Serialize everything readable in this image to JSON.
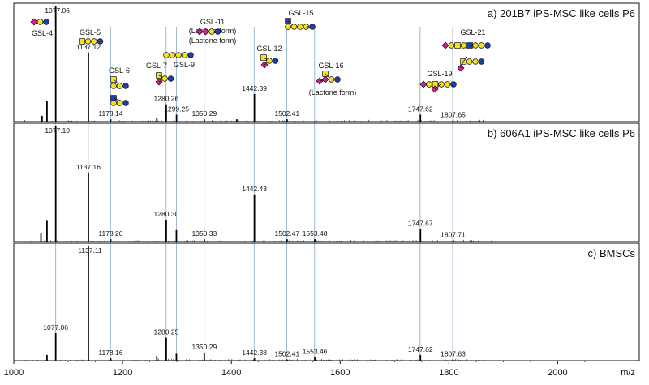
{
  "chart_data": {
    "type": "line",
    "title": "",
    "xlabel": "m/z",
    "ylabel": "",
    "xlim": [
      1000,
      2150
    ],
    "x_ticks": [
      1000,
      1200,
      1400,
      1600,
      1800,
      2000
    ],
    "grid": false,
    "panels": [
      {
        "label": "a) 201B7 iPS-MSC like cells P6",
        "peaks": [
          {
            "mz": 1052.0,
            "rel": 0.05,
            "label": ""
          },
          {
            "mz": 1061.0,
            "rel": 0.18,
            "label": ""
          },
          {
            "mz": 1077.06,
            "rel": 1.0,
            "label": "1077.06"
          },
          {
            "mz": 1137.12,
            "rel": 0.6,
            "label": "1137.12"
          },
          {
            "mz": 1178.14,
            "rel": 0.02,
            "label": "1178.14"
          },
          {
            "mz": 1263.0,
            "rel": 0.03,
            "label": ""
          },
          {
            "mz": 1280.26,
            "rel": 0.15,
            "label": "1280.26"
          },
          {
            "mz": 1299.25,
            "rel": 0.06,
            "label": "1299.25"
          },
          {
            "mz": 1350.29,
            "rel": 0.02,
            "label": "1350.29"
          },
          {
            "mz": 1410.0,
            "rel": 0.02,
            "label": ""
          },
          {
            "mz": 1442.39,
            "rel": 0.24,
            "label": "1442.39"
          },
          {
            "mz": 1502.41,
            "rel": 0.02,
            "label": "1502.41"
          },
          {
            "mz": 1747.62,
            "rel": 0.06,
            "label": "1747.62"
          },
          {
            "mz": 1807.65,
            "rel": 0.01,
            "label": "1807.65"
          }
        ]
      },
      {
        "label": "b) 606A1 iPS-MSC like cells P6",
        "peaks": [
          {
            "mz": 1050.0,
            "rel": 0.07,
            "label": ""
          },
          {
            "mz": 1061.0,
            "rel": 0.18,
            "label": ""
          },
          {
            "mz": 1077.1,
            "rel": 1.0,
            "label": "1077.10"
          },
          {
            "mz": 1137.16,
            "rel": 0.6,
            "label": "1137.16"
          },
          {
            "mz": 1178.2,
            "rel": 0.02,
            "label": "1178.20"
          },
          {
            "mz": 1280.3,
            "rel": 0.19,
            "label": "1280.30"
          },
          {
            "mz": 1299.0,
            "rel": 0.1,
            "label": ""
          },
          {
            "mz": 1350.33,
            "rel": 0.02,
            "label": "1350.33"
          },
          {
            "mz": 1442.43,
            "rel": 0.41,
            "label": "1442.43"
          },
          {
            "mz": 1502.47,
            "rel": 0.02,
            "label": "1502.47"
          },
          {
            "mz": 1553.48,
            "rel": 0.02,
            "label": "1553.48"
          },
          {
            "mz": 1747.67,
            "rel": 0.11,
            "label": "1747.67"
          },
          {
            "mz": 1807.71,
            "rel": 0.01,
            "label": "1807.71"
          }
        ]
      },
      {
        "label": "c) BMSCs",
        "peaks": [
          {
            "mz": 1061.0,
            "rel": 0.05,
            "label": ""
          },
          {
            "mz": 1077.06,
            "rel": 0.24,
            "label": "1077.06"
          },
          {
            "mz": 1137.11,
            "rel": 1.0,
            "label": "1137.11"
          },
          {
            "mz": 1178.16,
            "rel": 0.02,
            "label": "1178.16"
          },
          {
            "mz": 1263.0,
            "rel": 0.04,
            "label": ""
          },
          {
            "mz": 1280.25,
            "rel": 0.2,
            "label": "1280.25"
          },
          {
            "mz": 1299.0,
            "rel": 0.06,
            "label": ""
          },
          {
            "mz": 1350.29,
            "rel": 0.07,
            "label": "1350.29"
          },
          {
            "mz": 1442.38,
            "rel": 0.02,
            "label": "1442.38"
          },
          {
            "mz": 1502.41,
            "rel": 0.01,
            "label": "1502.41"
          },
          {
            "mz": 1553.46,
            "rel": 0.03,
            "label": "1553.46"
          },
          {
            "mz": 1747.62,
            "rel": 0.05,
            "label": "1747.62"
          },
          {
            "mz": 1807.63,
            "rel": 0.01,
            "label": "1807.63"
          }
        ]
      }
    ],
    "reference_lines_mz": [
      1077,
      1137,
      1178,
      1280,
      1299,
      1350,
      1442,
      1502,
      1553,
      1747,
      1807
    ],
    "annotations": [
      {
        "name": "GSL-4",
        "mz": 1077,
        "lines": [
          "GSL-4"
        ]
      },
      {
        "name": "GSL-5",
        "mz": 1137,
        "lines": [
          "GSL-5"
        ]
      },
      {
        "name": "GSL-6",
        "mz": 1178,
        "lines": [
          "GSL-6"
        ]
      },
      {
        "name": "GSL-7",
        "mz": 1280,
        "lines": [
          "GSL-7"
        ]
      },
      {
        "name": "GSL-9",
        "mz": 1299,
        "lines": [
          "GSL-9"
        ]
      },
      {
        "name": "GSL-11",
        "mz": 1350,
        "lines": [
          "GSL-11",
          "(Lactone form)"
        ]
      },
      {
        "name": "GSL-12",
        "mz": 1442,
        "lines": [
          "GSL-12"
        ]
      },
      {
        "name": "GSL-15",
        "mz": 1502,
        "lines": [
          "GSL-15"
        ]
      },
      {
        "name": "GSL-16",
        "mz": 1553,
        "lines": [
          "GSL-16",
          "(Lactone form)"
        ]
      },
      {
        "name": "GSL-19",
        "mz": 1747,
        "lines": [
          "GSL-19"
        ]
      },
      {
        "name": "GSL-21",
        "mz": 1807,
        "lines": [
          "GSL-21"
        ]
      }
    ],
    "glycan_colors": {
      "galactose_circle": "#f5e21a",
      "glucose_circle": "#1c3fb5",
      "hexnac_square": "#f5e21a",
      "glcnac_square": "#1c3fb5",
      "sialic_diamond": "#d0208c"
    }
  }
}
